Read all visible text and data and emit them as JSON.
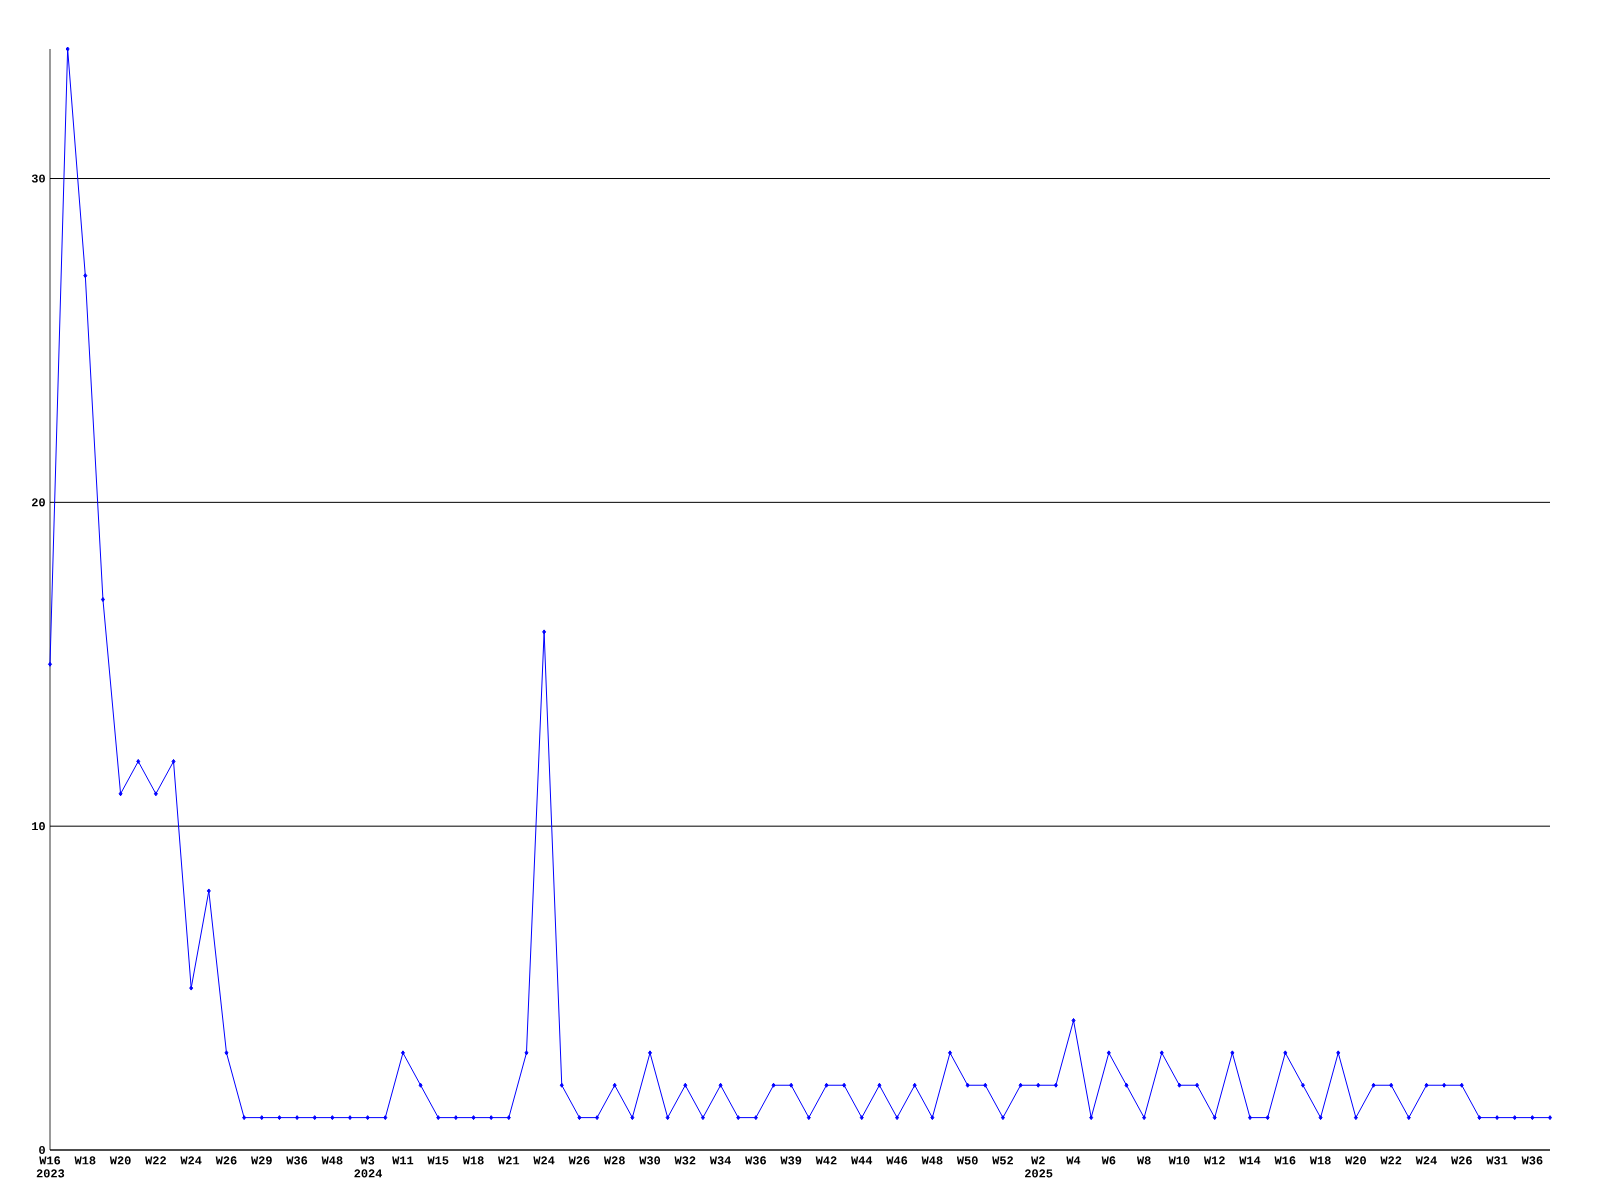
{
  "chart_data": {
    "type": "line",
    "categories": [
      "W16 2023",
      null,
      "W18",
      null,
      "W20",
      null,
      "W22",
      null,
      "W24",
      null,
      "W26",
      null,
      "W29",
      null,
      "W36",
      null,
      "W48",
      null,
      "W3 2024",
      null,
      "W11",
      null,
      "W15",
      null,
      "W18",
      null,
      "W21",
      null,
      "W24",
      null,
      "W26",
      null,
      "W28",
      null,
      "W30",
      null,
      "W32",
      null,
      "W34",
      null,
      "W36",
      null,
      "W39",
      null,
      "W42",
      null,
      "W44",
      null,
      "W46",
      null,
      "W48",
      null,
      "W50",
      null,
      "W52",
      null,
      "W2 2025",
      null,
      "W4",
      null,
      "W6",
      null,
      "W8",
      null,
      "W10",
      null,
      "W12",
      null,
      "W14",
      null,
      "W16",
      null,
      "W18",
      null,
      "W20",
      null,
      "W22",
      null,
      "W24",
      null,
      "W26",
      null,
      "W31",
      null,
      "W36",
      null
    ],
    "values": [
      15,
      34,
      27,
      17,
      11,
      12,
      11,
      12,
      5,
      8,
      3,
      1,
      1,
      1,
      1,
      1,
      1,
      1,
      1,
      1,
      3,
      2,
      1,
      1,
      1,
      1,
      1,
      3,
      16,
      2,
      1,
      1,
      2,
      1,
      3,
      1,
      2,
      1,
      2,
      1,
      1,
      2,
      2,
      1,
      2,
      2,
      1,
      2,
      1,
      2,
      1,
      3,
      2,
      2,
      1,
      2,
      2,
      2,
      4,
      1,
      3,
      2,
      1,
      3,
      2,
      2,
      1,
      3,
      1,
      1,
      3,
      2,
      1,
      3,
      1,
      2,
      2,
      1,
      2,
      2,
      2,
      1,
      1,
      1,
      1,
      1
    ],
    "color": "#0000ff",
    "ylim": [
      0,
      34
    ],
    "yticks": [
      0,
      10,
      20,
      30
    ],
    "grid": "y",
    "marker": "diamond",
    "line_style": "solid"
  }
}
